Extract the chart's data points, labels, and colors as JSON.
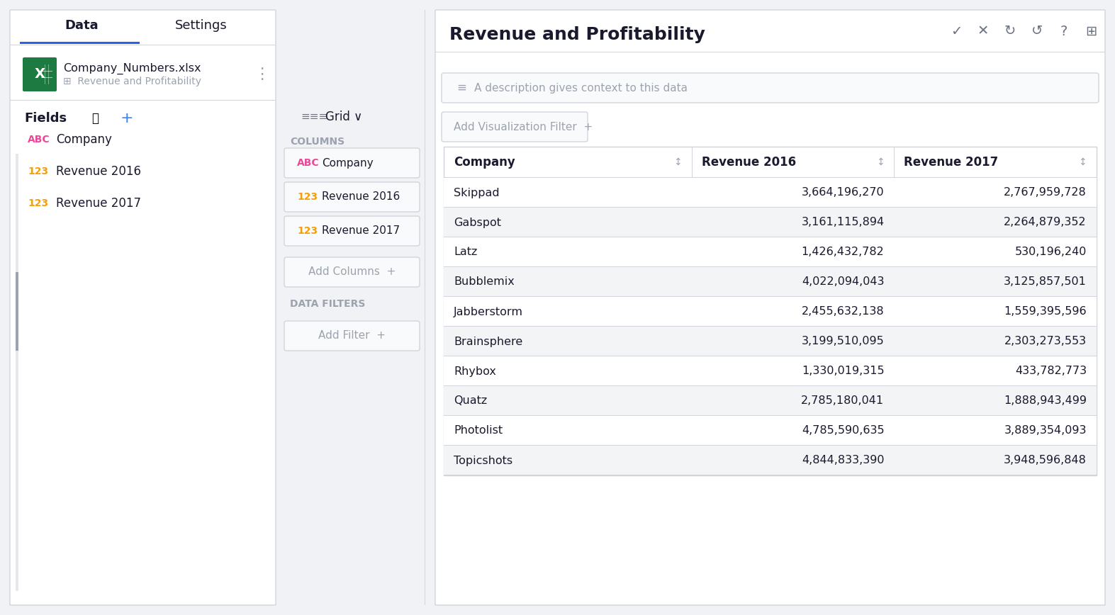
{
  "title": "Revenue and Profitability",
  "description_placeholder": "A description gives context to this data",
  "filter_placeholder": "Add Visualization Filter",
  "filename": "Company_Numbers.xlsx",
  "sheet": "Revenue and Profitability",
  "fields": [
    "Company",
    "Revenue 2016",
    "Revenue 2017"
  ],
  "columns_section": [
    "Company",
    "Revenue 2016",
    "Revenue 2017"
  ],
  "table_headers": [
    "Company",
    "Revenue 2016",
    "Revenue 2017"
  ],
  "companies": [
    "Skippad",
    "Gabspot",
    "Latz",
    "Bubblemix",
    "Jabberstorm",
    "Brainsphere",
    "Rhybox",
    "Quatz",
    "Photolist",
    "Topicshots"
  ],
  "revenue_2016": [
    "3,664,196,270",
    "3,161,115,894",
    "1,426,432,782",
    "4,022,094,043",
    "2,455,632,138",
    "3,199,510,095",
    "1,330,019,315",
    "2,785,180,041",
    "4,785,590,635",
    "4,844,833,390"
  ],
  "revenue_2017": [
    "2,767,959,728",
    "2,264,879,352",
    "530,196,240",
    "3,125,857,501",
    "1,559,395,596",
    "2,303,273,553",
    "433,782,773",
    "1,888,943,499",
    "3,889,354,093",
    "3,948,596,848"
  ],
  "bg_color": "#f0f2f5",
  "panel_left_bg": "#ffffff",
  "panel_right_bg": "#ffffff",
  "tab_active_color": "#2563eb",
  "text_dark": "#1a1a2e",
  "text_gray": "#9ca3af",
  "text_pink": "#ec4899",
  "text_orange": "#f59e0b",
  "text_blue": "#3b82f6",
  "row_alt_color": "#f3f4f6",
  "row_white": "#ffffff",
  "border_color": "#d1d5db",
  "header_bg": "#ffffff",
  "icon_grid_color": "#6b7280"
}
